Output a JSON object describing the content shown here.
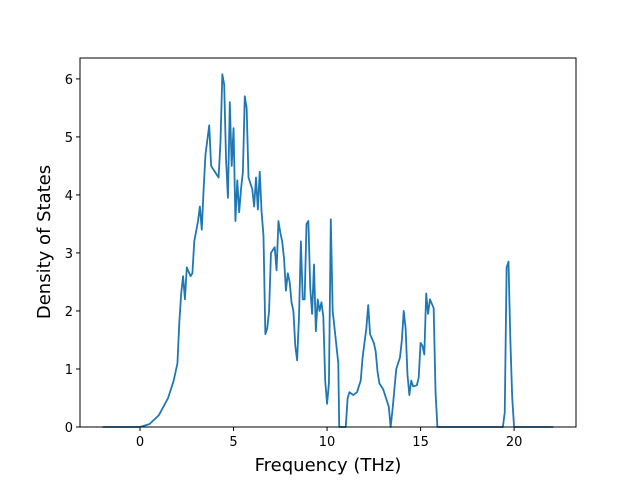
{
  "chart_data": {
    "type": "line",
    "xlabel": "Frequency (THz)",
    "ylabel": "Density of States",
    "xlim": [
      -3.21,
      23.31
    ],
    "ylim": [
      0,
      6.36
    ],
    "xticks": [
      0,
      5,
      10,
      15,
      20
    ],
    "yticks": [
      0,
      1,
      2,
      3,
      4,
      5,
      6
    ],
    "series": [
      {
        "color": "#1f77b4",
        "x": [
          -2,
          0,
          0.5,
          1,
          1.5,
          1.8,
          2.0,
          2.1,
          2.2,
          2.3,
          2.4,
          2.5,
          2.7,
          2.8,
          2.9,
          3.1,
          3.2,
          3.3,
          3.4,
          3.5,
          3.7,
          3.8,
          4.0,
          4.2,
          4.3,
          4.4,
          4.5,
          4.6,
          4.7,
          4.8,
          4.9,
          5.0,
          5.1,
          5.2,
          5.3,
          5.4,
          5.5,
          5.6,
          5.7,
          5.8,
          6.0,
          6.1,
          6.2,
          6.3,
          6.4,
          6.5,
          6.6,
          6.7,
          6.8,
          6.9,
          7.0,
          7.2,
          7.3,
          7.4,
          7.5,
          7.6,
          7.7,
          7.8,
          7.9,
          8.0,
          8.1,
          8.2,
          8.3,
          8.4,
          8.5,
          8.6,
          8.7,
          8.8,
          8.9,
          9.0,
          9.1,
          9.2,
          9.3,
          9.4,
          9.5,
          9.6,
          9.7,
          9.8,
          9.9,
          10.0,
          10.1,
          10.2,
          10.3,
          10.5,
          10.6,
          10.65,
          11.0,
          11.1,
          11.2,
          11.4,
          11.6,
          11.8,
          11.9,
          12.1,
          12.2,
          12.3,
          12.5,
          12.6,
          12.7,
          12.8,
          13.0,
          13.2,
          13.3,
          13.4,
          13.5,
          13.7,
          13.9,
          14.0,
          14.1,
          14.2,
          14.3,
          14.4,
          14.5,
          14.6,
          14.8,
          14.9,
          15.0,
          15.1,
          15.2,
          15.3,
          15.4,
          15.5,
          15.7,
          15.8,
          15.9,
          19.4,
          19.5,
          19.6,
          19.7,
          19.8,
          19.9,
          20.0,
          22.1
        ],
        "values": [
          0,
          0,
          0.05,
          0.2,
          0.5,
          0.8,
          1.1,
          1.8,
          2.3,
          2.6,
          2.2,
          2.75,
          2.6,
          2.65,
          3.2,
          3.55,
          3.8,
          3.4,
          4.1,
          4.7,
          5.2,
          4.5,
          4.4,
          4.3,
          4.9,
          6.08,
          5.9,
          4.6,
          3.95,
          5.6,
          4.5,
          5.15,
          3.55,
          4.25,
          3.7,
          4.1,
          4.4,
          5.7,
          5.5,
          4.3,
          4.1,
          3.8,
          4.3,
          3.75,
          4.4,
          3.7,
          3.3,
          1.6,
          1.7,
          2.0,
          3.0,
          3.1,
          2.7,
          3.55,
          3.35,
          3.2,
          2.9,
          2.35,
          2.65,
          2.5,
          2.15,
          2.0,
          1.4,
          1.15,
          1.9,
          3.2,
          2.2,
          2.2,
          3.5,
          3.55,
          2.4,
          1.95,
          2.8,
          1.65,
          2.2,
          2.0,
          2.15,
          1.9,
          0.8,
          0.4,
          0.75,
          3.58,
          2.0,
          1.4,
          1.1,
          0,
          0,
          0.5,
          0.6,
          0.55,
          0.6,
          0.8,
          1.2,
          1.7,
          2.1,
          1.6,
          1.45,
          1.3,
          0.95,
          0.75,
          0.65,
          0.45,
          0.35,
          0,
          0.3,
          1.0,
          1.2,
          1.5,
          2.0,
          1.7,
          0.9,
          0.55,
          0.8,
          0.7,
          0.72,
          0.85,
          1.45,
          1.4,
          1.25,
          2.3,
          1.95,
          2.2,
          2.05,
          0.6,
          0,
          0,
          0.25,
          2.75,
          2.85,
          1.5,
          0.5,
          0,
          0
        ]
      }
    ]
  }
}
